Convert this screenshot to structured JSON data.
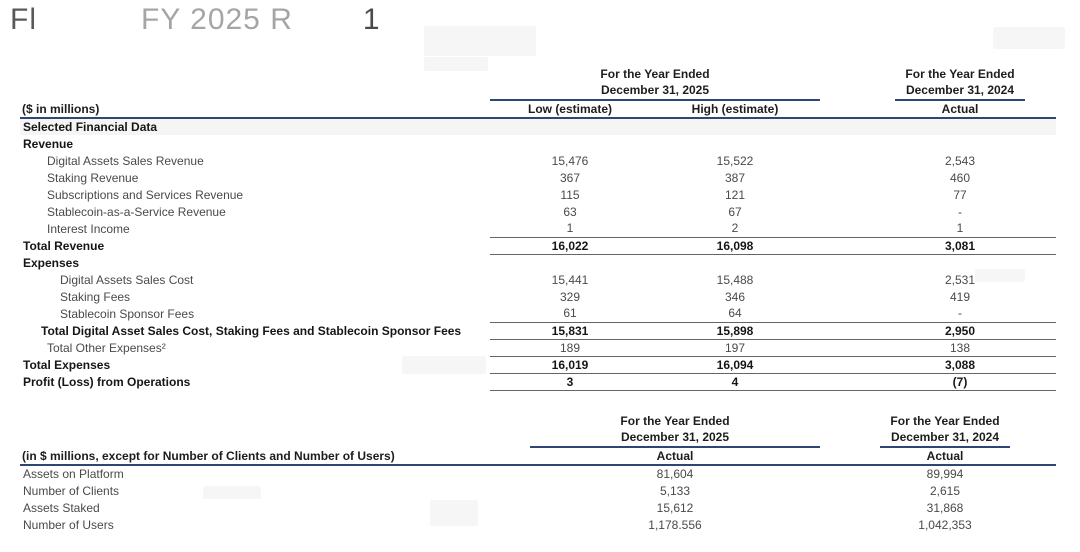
{
  "title": {
    "fragments": [
      "Fl",
      "FY 2025 R",
      "1"
    ],
    "note": "partially faded scanned heading"
  },
  "colors": {
    "rule_navy": "#2f4573",
    "rule_gray": "#62666b",
    "text_primary": "#161616",
    "text_secondary": "#4a4a4a",
    "background": "#ffffff"
  },
  "table1": {
    "unit_label": "($ in millions)",
    "col_groups": [
      {
        "line1": "For the Year Ended",
        "line2": "December 31, 2025"
      },
      {
        "line1": "For the Year Ended",
        "line2": "December 31, 2024"
      }
    ],
    "columns": [
      "Low (estimate)",
      "High (estimate)",
      "Actual"
    ],
    "rows": [
      {
        "label": "Selected Financial Data"
      },
      {
        "label": "Revenue"
      },
      {
        "label": "Digital Assets Sales Revenue",
        "low": "15,476",
        "high": "15,522",
        "actual": "2,543"
      },
      {
        "label": "Staking Revenue",
        "low": "367",
        "high": "387",
        "actual": "460"
      },
      {
        "label": "Subscriptions and Services Revenue",
        "low": "115",
        "high": "121",
        "actual": "77"
      },
      {
        "label": "Stablecoin-as-a-Service Revenue",
        "low": "63",
        "high": "67",
        "actual": "-"
      },
      {
        "label": "Interest Income",
        "low": "1",
        "high": "2",
        "actual": "1"
      },
      {
        "label": "Total Revenue",
        "low": "16,022",
        "high": "16,098",
        "actual": "3,081"
      },
      {
        "label": "Expenses"
      },
      {
        "label": "Digital Assets Sales Cost",
        "low": "15,441",
        "high": "15,488",
        "actual": "2,531"
      },
      {
        "label": "Staking Fees",
        "low": "329",
        "high": "346",
        "actual": "419"
      },
      {
        "label": "Stablecoin Sponsor Fees",
        "low": "61",
        "high": "64",
        "actual": "-"
      },
      {
        "label": "Total Digital Asset Sales Cost, Staking Fees and Stablecoin Sponsor Fees",
        "low": "15,831",
        "high": "15,898",
        "actual": "2,950"
      },
      {
        "label": "Total Other Expenses²",
        "low": "189",
        "high": "197",
        "actual": "138"
      },
      {
        "label": "Total Expenses",
        "low": "16,019",
        "high": "16,094",
        "actual": "3,088"
      },
      {
        "label": "Profit (Loss) from Operations",
        "low": "3",
        "high": "4",
        "actual": "(7)"
      }
    ]
  },
  "table2": {
    "unit_label": "(in $ millions, except for Number of Clients and Number of Users)",
    "col_groups": [
      {
        "line1": "For the Year Ended",
        "line2": "December 31, 2025"
      },
      {
        "line1": "For the Year Ended",
        "line2": "December 31, 2024"
      }
    ],
    "columns": [
      "Actual",
      "Actual"
    ],
    "rows": [
      {
        "label": "Assets on Platform",
        "y2025": "81,604",
        "y2024": "89,994"
      },
      {
        "label": "Number of Clients",
        "y2025": "5,133",
        "y2024": "2,615"
      },
      {
        "label": "Assets Staked",
        "y2025": "15,612",
        "y2024": "31,868"
      },
      {
        "label": "Number of Users",
        "y2025": "1,178.556",
        "y2024": "1,042,353"
      }
    ]
  }
}
